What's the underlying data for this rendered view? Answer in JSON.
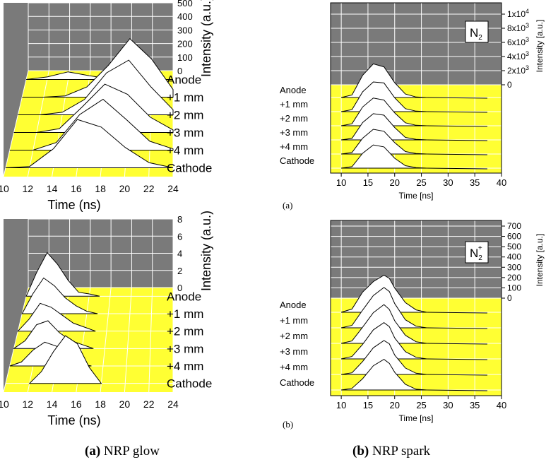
{
  "colors": {
    "gray": "#7a7a7a",
    "yellow": "#ffff33",
    "grid": "#ffffff",
    "curve": "#000000",
    "fill": "#ffffff"
  },
  "chart_data": [
    {
      "panel": "top-left",
      "type": "area",
      "xlabel": "Time (ns)",
      "ylabel": "Intensity (a.u.)",
      "x_ticks": [
        "10",
        "12",
        "14",
        "16",
        "18",
        "20",
        "22",
        "24"
      ],
      "z_ticks": [
        "500",
        "400",
        "300",
        "200",
        "100",
        "0"
      ],
      "positions": [
        "Anode",
        "+1 mm",
        "+2 mm",
        "+3 mm",
        "+4 mm",
        "Cathode"
      ],
      "series": [
        {
          "name": "Anode",
          "x": [
            10,
            12,
            14,
            16,
            18,
            20,
            22,
            24
          ],
          "values": [
            0,
            20,
            60,
            30,
            5,
            0,
            0,
            0
          ]
        },
        {
          "name": "+1 mm",
          "x": [
            10,
            12,
            14,
            16,
            18,
            20,
            22,
            24
          ],
          "values": [
            0,
            0,
            10,
            80,
            250,
            460,
            300,
            60
          ]
        },
        {
          "name": "+2 mm",
          "x": [
            10,
            12,
            14,
            16,
            18,
            20,
            22,
            24
          ],
          "values": [
            0,
            0,
            20,
            120,
            330,
            430,
            220,
            40
          ]
        },
        {
          "name": "+3 mm",
          "x": [
            10,
            12,
            14,
            16,
            18,
            20,
            22,
            24
          ],
          "values": [
            0,
            0,
            30,
            200,
            380,
            300,
            120,
            20
          ]
        },
        {
          "name": "+4 mm",
          "x": [
            10,
            12,
            14,
            16,
            18,
            20,
            22,
            24
          ],
          "values": [
            0,
            0,
            60,
            280,
            400,
            240,
            70,
            10
          ]
        },
        {
          "name": "Cathode",
          "x": [
            10,
            12,
            14,
            16,
            18,
            20,
            22,
            24
          ],
          "values": [
            0,
            10,
            150,
            380,
            320,
            160,
            40,
            0
          ]
        }
      ]
    },
    {
      "panel": "top-right",
      "type": "area",
      "annotation": "N2",
      "xlabel": "Time [ns]",
      "ylabel": "Intensity [a.u.]",
      "x_ticks": [
        "10",
        "15",
        "20",
        "25",
        "30",
        "35",
        "40"
      ],
      "z_ticks": [
        "1x10^4",
        "8x10^3",
        "6x10^3",
        "4x10^3",
        "2x10^3",
        "0"
      ],
      "positions": [
        "Anode",
        "+1 mm",
        "+2 mm",
        "+3 mm",
        "+4 mm",
        "Cathode"
      ],
      "series": [
        {
          "name": "Anode",
          "x": [
            10,
            12,
            14,
            16,
            18,
            20,
            22,
            24,
            26
          ],
          "values": [
            0,
            500,
            4500,
            6800,
            6200,
            3000,
            700,
            100,
            0
          ]
        },
        {
          "name": "+1 mm",
          "x": [
            10,
            12,
            14,
            16,
            18,
            20,
            22,
            24,
            26
          ],
          "values": [
            0,
            400,
            4000,
            6000,
            5800,
            2800,
            600,
            100,
            0
          ]
        },
        {
          "name": "+2 mm",
          "x": [
            10,
            12,
            14,
            16,
            18,
            20,
            22,
            24,
            26
          ],
          "values": [
            0,
            400,
            3800,
            5600,
            5200,
            2600,
            600,
            100,
            0
          ]
        },
        {
          "name": "+3 mm",
          "x": [
            10,
            12,
            14,
            16,
            18,
            20,
            22,
            24,
            26
          ],
          "values": [
            0,
            300,
            3500,
            5300,
            5000,
            2500,
            500,
            100,
            0
          ]
        },
        {
          "name": "+4 mm",
          "x": [
            10,
            12,
            14,
            16,
            18,
            20,
            22,
            24,
            26
          ],
          "values": [
            0,
            300,
            3200,
            5000,
            4600,
            2300,
            500,
            100,
            0
          ]
        },
        {
          "name": "Cathode",
          "x": [
            10,
            12,
            14,
            16,
            18,
            20,
            22,
            24,
            26
          ],
          "values": [
            0,
            300,
            3000,
            4700,
            4300,
            2000,
            500,
            100,
            0
          ]
        }
      ]
    },
    {
      "panel": "bottom-left",
      "type": "area",
      "xlabel": "Time (ns)",
      "ylabel": "Intensity (a.u.)",
      "x_ticks": [
        "10",
        "12",
        "14",
        "16",
        "18",
        "20",
        "22",
        "24"
      ],
      "z_ticks": [
        "8",
        "6",
        "4",
        "2",
        "0"
      ],
      "positions": [
        "Anode",
        "+1 mm",
        "+2 mm",
        "+3 mm",
        "+4 mm",
        "Cathode"
      ],
      "series": [
        {
          "name": "Anode",
          "x": [
            10,
            11,
            12,
            13,
            14,
            15,
            16,
            17
          ],
          "values": [
            0,
            3,
            5.5,
            4,
            2,
            0.5,
            0.3,
            0
          ]
        },
        {
          "name": "+1 mm",
          "x": [
            10,
            11,
            12,
            13,
            14,
            15,
            16,
            17
          ],
          "values": [
            0,
            2.5,
            4.5,
            3.5,
            2,
            1,
            0.3,
            0
          ]
        },
        {
          "name": "+2 mm",
          "x": [
            10,
            11,
            12,
            13,
            14,
            15,
            16,
            17
          ],
          "values": [
            0,
            1.5,
            3.5,
            3,
            2,
            1,
            0.5,
            0
          ]
        },
        {
          "name": "+3 mm",
          "x": [
            10,
            11,
            12,
            13,
            14,
            15,
            16,
            17
          ],
          "values": [
            0,
            1,
            3,
            3.5,
            2,
            1,
            0.5,
            0
          ]
        },
        {
          "name": "+4 mm",
          "x": [
            10,
            11,
            12,
            13,
            14,
            15,
            16,
            17
          ],
          "values": [
            0,
            0.5,
            2,
            3,
            2.5,
            1,
            0.3,
            0
          ]
        },
        {
          "name": "Cathode",
          "x": [
            12,
            13,
            14,
            15,
            16,
            17,
            18
          ],
          "values": [
            0,
            1.5,
            4,
            6,
            5,
            2,
            0
          ]
        }
      ]
    },
    {
      "panel": "bottom-right",
      "type": "area",
      "annotation": "N2+",
      "xlabel": "Time [ns]",
      "ylabel": "Intensity [a.u.]",
      "x_ticks": [
        "10",
        "15",
        "20",
        "25",
        "30",
        "35",
        "40"
      ],
      "z_ticks": [
        "700",
        "600",
        "500",
        "400",
        "300",
        "200",
        "100",
        "0"
      ],
      "positions": [
        "Anode",
        "+1 mm",
        "+2 mm",
        "+3 mm",
        "+4 mm",
        "Cathode"
      ],
      "series": [
        {
          "name": "Anode",
          "x": [
            10,
            12,
            14,
            16,
            18,
            19,
            20,
            22,
            24,
            26
          ],
          "values": [
            0,
            40,
            250,
            380,
            460,
            420,
            300,
            120,
            30,
            0
          ]
        },
        {
          "name": "+1 mm",
          "x": [
            10,
            12,
            14,
            16,
            18,
            19,
            20,
            22,
            24,
            26
          ],
          "values": [
            0,
            30,
            220,
            400,
            500,
            450,
            300,
            100,
            20,
            0
          ]
        },
        {
          "name": "+2 mm",
          "x": [
            10,
            12,
            14,
            16,
            18,
            19,
            20,
            22,
            24,
            26
          ],
          "values": [
            0,
            30,
            200,
            380,
            480,
            420,
            280,
            100,
            20,
            0
          ]
        },
        {
          "name": "+3 mm",
          "x": [
            10,
            12,
            14,
            16,
            18,
            19,
            20,
            22,
            24,
            26
          ],
          "values": [
            0,
            30,
            180,
            360,
            450,
            400,
            260,
            90,
            20,
            0
          ]
        },
        {
          "name": "+4 mm",
          "x": [
            10,
            12,
            14,
            16,
            18,
            19,
            20,
            22,
            24,
            26
          ],
          "values": [
            0,
            20,
            160,
            330,
            420,
            380,
            240,
            80,
            15,
            0
          ]
        },
        {
          "name": "Cathode",
          "x": [
            10,
            12,
            14,
            16,
            18,
            19,
            20,
            22,
            24,
            26
          ],
          "values": [
            0,
            20,
            140,
            300,
            380,
            330,
            220,
            70,
            10,
            0
          ]
        }
      ]
    }
  ],
  "subpanel_labels": {
    "a": "(a)",
    "b": "(b)"
  },
  "captions": {
    "a_tag": "(a)",
    "a_text": "NRP glow",
    "b_tag": "(b)",
    "b_text": "NRP spark"
  }
}
